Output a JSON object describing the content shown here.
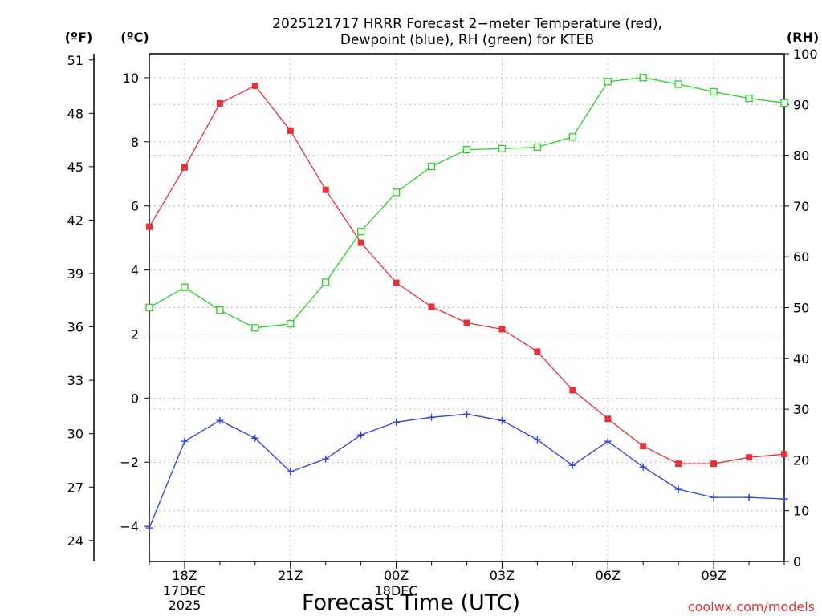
{
  "chart_data": {
    "type": "line",
    "title_line1": "2025121717 HRRR Forecast 2−meter Temperature (red),",
    "title_line2": "Dewpoint (blue), RH (green) for KTEB",
    "xlabel": "Forecast Time (UTC)",
    "watermark": "coolwx.com/models",
    "grid": true,
    "x_hours": [
      17,
      18,
      19,
      20,
      21,
      22,
      23,
      24,
      25,
      26,
      27,
      28,
      29,
      30,
      31,
      32,
      33,
      34,
      35
    ],
    "xlim": [
      17,
      35
    ],
    "x_ticks": [
      {
        "hour": 18,
        "label": "18Z",
        "sub1": "17DEC",
        "sub2": "2025"
      },
      {
        "hour": 21,
        "label": "21Z",
        "sub1": "",
        "sub2": ""
      },
      {
        "hour": 24,
        "label": "00Z",
        "sub1": "18DEC",
        "sub2": ""
      },
      {
        "hour": 27,
        "label": "03Z",
        "sub1": "",
        "sub2": ""
      },
      {
        "hour": 30,
        "label": "06Z",
        "sub1": "",
        "sub2": ""
      },
      {
        "hour": 33,
        "label": "09Z",
        "sub1": "",
        "sub2": ""
      }
    ],
    "axis_c": {
      "label": "(ºC)",
      "ylim": [
        -5.1,
        10.75
      ],
      "ticks": [
        "10",
        "8",
        "6",
        "4",
        "2",
        "0",
        "−2",
        "−4"
      ],
      "tick_values": [
        10,
        8,
        6,
        4,
        2,
        0,
        -2,
        -4
      ]
    },
    "axis_f": {
      "label": "(ºF)",
      "ticks": [
        "51",
        "48",
        "45",
        "42",
        "39",
        "36",
        "33",
        "30",
        "27",
        "24"
      ],
      "tick_values": [
        51,
        48,
        45,
        42,
        39,
        36,
        33,
        30,
        27,
        24
      ]
    },
    "axis_rh": {
      "label": "(RH)",
      "ylim": [
        0,
        100
      ],
      "ticks": [
        "100",
        "90",
        "80",
        "70",
        "60",
        "50",
        "40",
        "30",
        "20",
        "10",
        "0"
      ],
      "tick_values": [
        100,
        90,
        80,
        70,
        60,
        50,
        40,
        30,
        20,
        10,
        0
      ]
    },
    "series": [
      {
        "name": "Temperature",
        "axis": "c",
        "color": "#e8303a",
        "marker": "filled-square",
        "values": [
          5.35,
          7.2,
          9.2,
          9.75,
          8.35,
          6.5,
          4.85,
          3.6,
          2.85,
          2.35,
          2.15,
          1.45,
          0.25,
          -0.65,
          -1.5,
          -2.05,
          -2.05,
          -1.85,
          -1.75
        ]
      },
      {
        "name": "Dewpoint",
        "axis": "c",
        "color": "#2f3fe4",
        "marker": "plus",
        "values": [
          -4.05,
          -1.35,
          -0.7,
          -1.25,
          -2.3,
          -1.9,
          -1.15,
          -0.75,
          -0.6,
          -0.5,
          -0.7,
          -1.3,
          -2.1,
          -1.35,
          -2.15,
          -2.85,
          -3.1,
          -3.1,
          -3.15
        ]
      },
      {
        "name": "RH",
        "axis": "rh",
        "color": "#28d228",
        "marker": "open-square",
        "values": [
          50,
          54,
          49.5,
          46,
          46.8,
          55,
          65,
          72.7,
          77.8,
          81.1,
          81.3,
          81.6,
          83.6,
          94.5,
          95.3,
          94,
          92.5,
          91.2,
          90.3
        ]
      }
    ]
  }
}
